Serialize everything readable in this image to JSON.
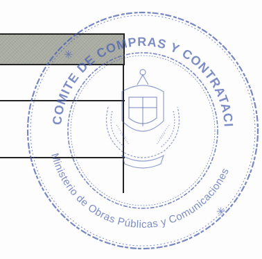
{
  "seal": {
    "top_text": "COMITE DE COMPRAS Y CONTRATACIONES",
    "bottom_text": "Ministerio de Obras Públicas y Comunicaciones",
    "ink_color": "#4a5fae",
    "emblem_icon": "coat-of-arms-icon"
  },
  "table": {
    "shaded_color": "#a9aca3",
    "line_color": "#222222"
  }
}
